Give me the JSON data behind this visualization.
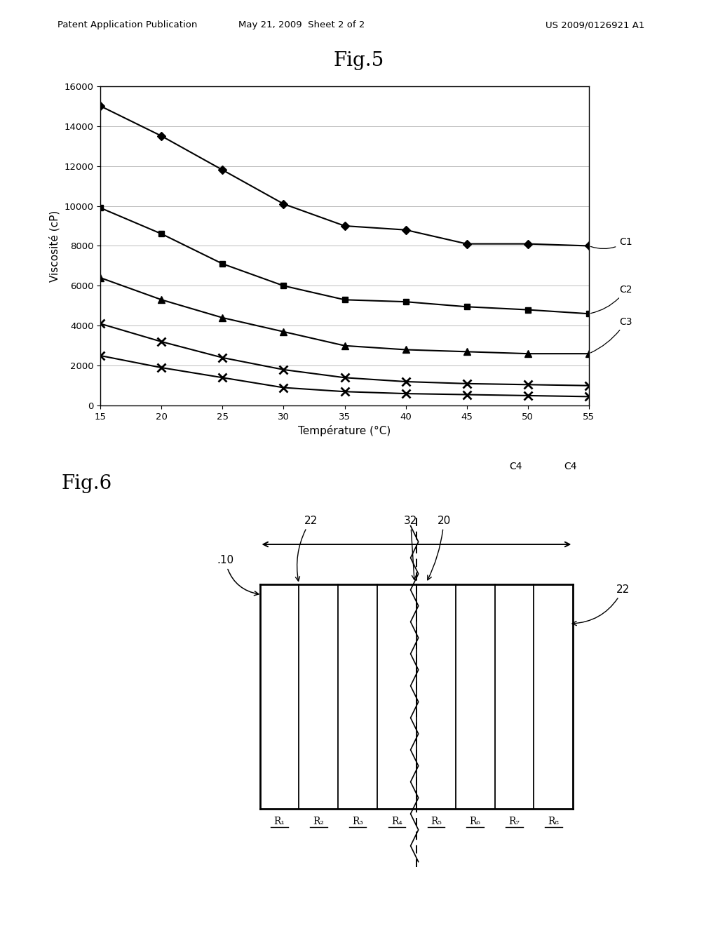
{
  "header_left": "Patent Application Publication",
  "header_center": "May 21, 2009  Sheet 2 of 2",
  "header_right": "US 2009/0126921 A1",
  "fig5_title": "Fig.5",
  "fig5_xlabel": "Température (°C)",
  "fig5_ylabel": "Viscosité (cP)",
  "fig5_xlim": [
    15,
    55
  ],
  "fig5_ylim": [
    0,
    16000
  ],
  "fig5_xticks": [
    15,
    20,
    25,
    30,
    35,
    40,
    45,
    50,
    55
  ],
  "fig5_yticks": [
    0,
    2000,
    4000,
    6000,
    8000,
    10000,
    12000,
    14000,
    16000
  ],
  "C1_x": [
    15,
    20,
    25,
    30,
    35,
    40,
    45,
    50,
    55
  ],
  "C1_y": [
    15000,
    13500,
    11800,
    10100,
    9000,
    8800,
    8100,
    8100,
    8000
  ],
  "C2_x": [
    15,
    20,
    25,
    30,
    35,
    40,
    45,
    50,
    55
  ],
  "C2_y": [
    9900,
    8600,
    7100,
    6000,
    5300,
    5200,
    4950,
    4800,
    4600
  ],
  "C3_x": [
    15,
    20,
    25,
    30,
    35,
    40,
    45,
    50,
    55
  ],
  "C3_y": [
    6400,
    5300,
    4400,
    3700,
    3000,
    2800,
    2700,
    2600,
    2600
  ],
  "C4a_x": [
    15,
    20,
    25,
    30,
    35,
    40,
    45,
    50,
    55
  ],
  "C4a_y": [
    4100,
    3200,
    2400,
    1800,
    1400,
    1200,
    1100,
    1050,
    1000
  ],
  "C4b_x": [
    15,
    20,
    25,
    30,
    35,
    40,
    45,
    50,
    55
  ],
  "C4b_y": [
    2500,
    1900,
    1400,
    900,
    700,
    600,
    550,
    500,
    450
  ],
  "fig6_title": "Fig.6",
  "fig6_regions": [
    "R₁",
    "R₂",
    "R₃",
    "R₄",
    "R₅",
    "R₆",
    "R₇",
    "R₈"
  ],
  "background_color": "#ffffff",
  "line_color": "#000000",
  "grid_color": "#bbbbbb"
}
